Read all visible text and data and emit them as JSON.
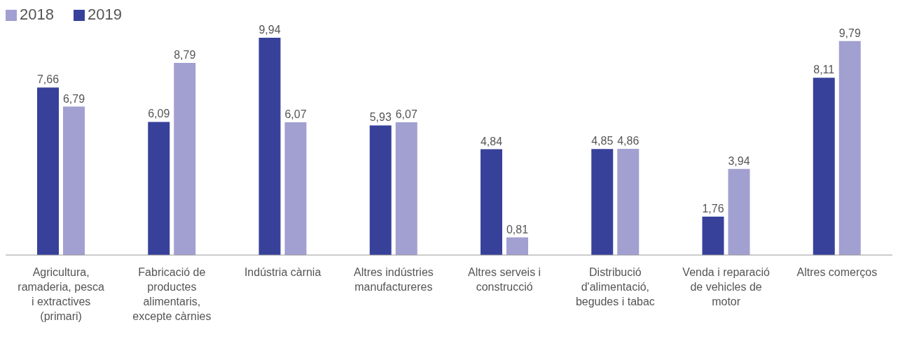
{
  "chart_data": {
    "type": "bar",
    "categories": [
      "Agricultura, ramaderia, pesca i extractives (primari)",
      "Fabricació de productes alimentaris, excepte càrnies",
      "Indústria càrnia",
      "Altres indústries manufactureres",
      "Altres serveis i construcció",
      "Distribució d'alimentació, begudes i tabac",
      "Venda i reparació de vehicles de motor",
      "Altres comerços"
    ],
    "series": [
      {
        "name": "2019",
        "color": "#38419a",
        "values": [
          7.66,
          6.09,
          9.94,
          5.93,
          4.84,
          4.85,
          1.76,
          8.11
        ],
        "value_labels": [
          "7,66",
          "6,09",
          "9,94",
          "5,93",
          "4,84",
          "4,85",
          "1,76",
          "8,11"
        ]
      },
      {
        "name": "2018",
        "color": "#a29fd1",
        "values": [
          6.79,
          8.79,
          6.07,
          6.07,
          0.81,
          4.86,
          3.94,
          9.79
        ],
        "value_labels": [
          "6,79",
          "8,79",
          "6,07",
          "6,07",
          "0,81",
          "4,86",
          "3,94",
          "9,79"
        ]
      }
    ],
    "legend": "top left",
    "grid": false
  }
}
